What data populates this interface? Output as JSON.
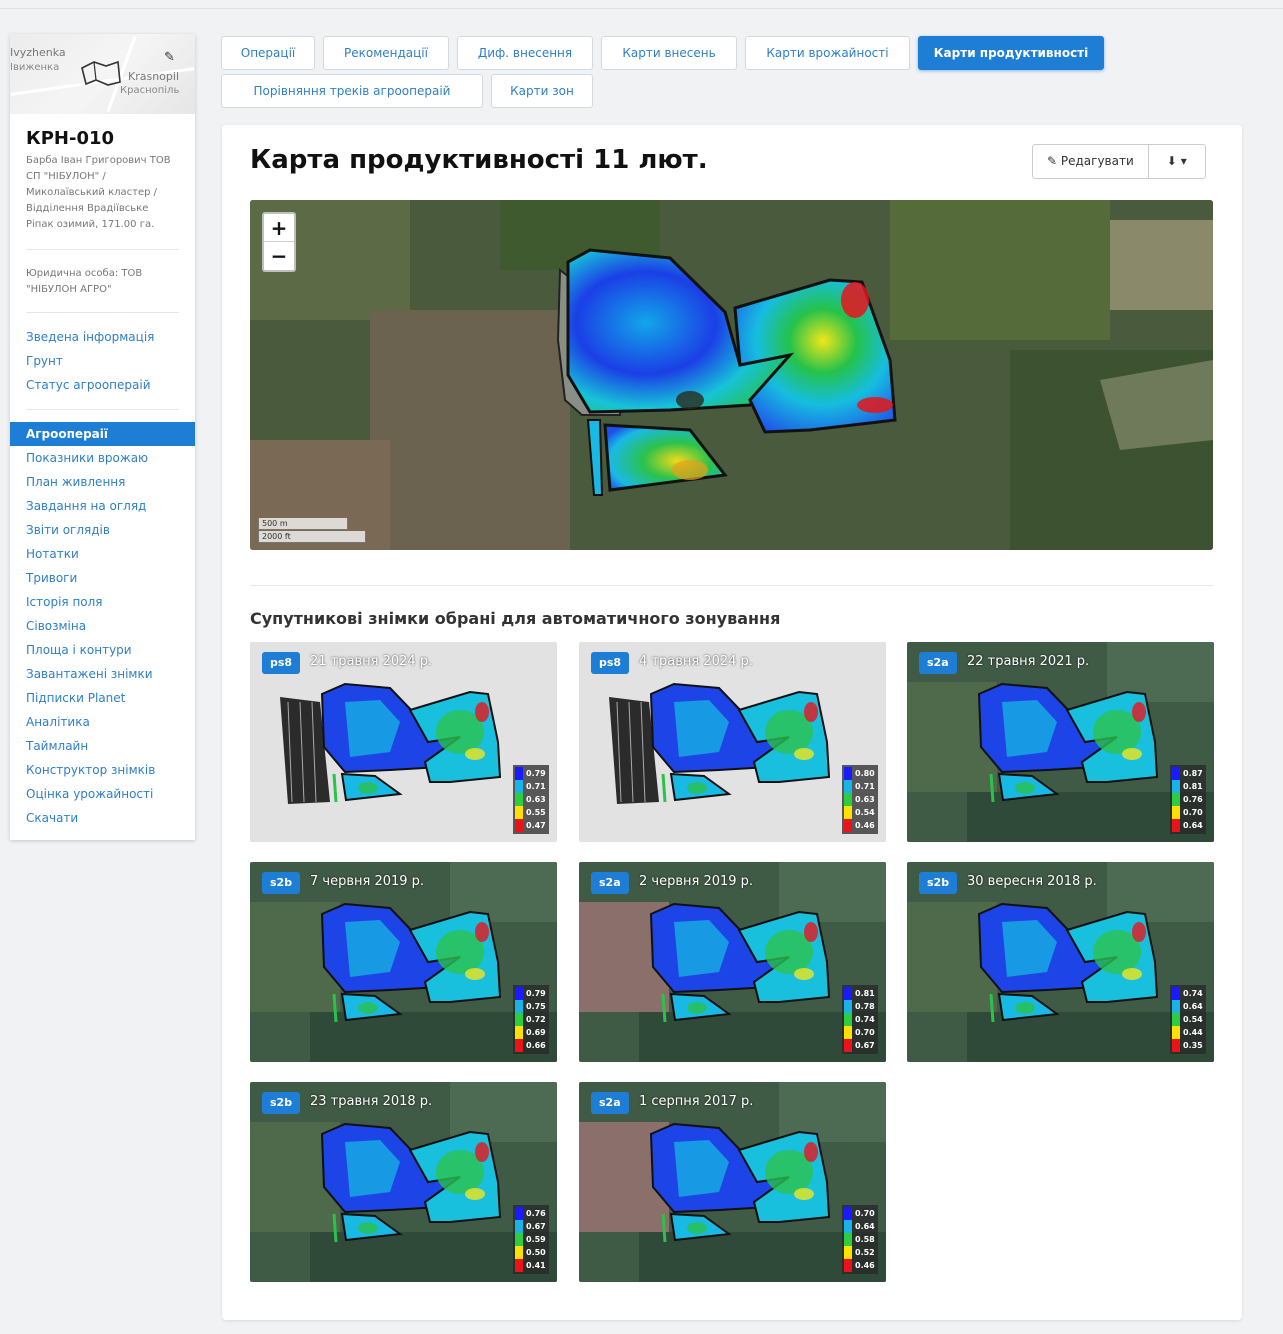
{
  "sidebar": {
    "minimap": {
      "label1": "Ivyzhenka",
      "label2": "Івиженка",
      "label3": "Krasnopil",
      "label4": "Краснопіль"
    },
    "field_code": "КРН-010",
    "field_description": "Барба Іван Григорович ТОВ СП \"НІБУЛОН\" / Миколаївський кластер / Відділення Врадіївське Ріпак озимий, 171.00 га.",
    "legal_entity": "Юридична особа: ТОВ \"НІБУЛОН АГРО\"",
    "nav_top": [
      "Зведена інформація",
      "Грунт",
      "Статус агроопераій"
    ],
    "nav_main": [
      "Агроопераії",
      "Показники врожаю",
      "План живлення",
      "Завдання на огляд",
      "Звіти оглядів",
      "Нотатки",
      "Тривоги",
      "Історія поля",
      "Сівозміна",
      "Площа і контури",
      "Завантажені знімки",
      "Підписки Planet",
      "Аналітика",
      "Таймлайн",
      "Конструктор знімків",
      "Оцінка урожайності",
      "Скачати"
    ]
  },
  "tabs": [
    "Операції",
    "Рекомендації",
    "Диф. внесення",
    "Карти внесень",
    "Карти врожайності",
    "Карти продуктивності",
    "Порівняння треків агроопераій",
    "Карти зон"
  ],
  "active_tab": "Карти продуктивності",
  "main": {
    "title": "Карта продуктивності 11 лют.",
    "edit_label": "Редагувати",
    "zoom_in": "+",
    "zoom_out": "−",
    "scale_m": "500 m",
    "scale_ft": "2000 ft",
    "section_title": "Супутникові знімки обрані для автоматичного зонування"
  },
  "thumbnails": [
    {
      "source": "ps8",
      "date": "21 травня 2024 р.",
      "background": "gray",
      "legend": [
        "0.79",
        "0.71",
        "0.63",
        "0.55",
        "0.47"
      ]
    },
    {
      "source": "ps8",
      "date": "4 травня 2024 р.",
      "background": "gray",
      "legend": [
        "0.80",
        "0.71",
        "0.63",
        "0.54",
        "0.46"
      ]
    },
    {
      "source": "s2a",
      "date": "22 травня 2021 р.",
      "background": "satellite",
      "legend": [
        "0.87",
        "0.81",
        "0.76",
        "0.70",
        "0.64"
      ]
    },
    {
      "source": "s2b",
      "date": "7 червня 2019 р.",
      "background": "satellite",
      "legend": [
        "0.79",
        "0.75",
        "0.72",
        "0.69",
        "0.66"
      ]
    },
    {
      "source": "s2a",
      "date": "2 червня 2019 р.",
      "background": "satellite",
      "legend": [
        "0.81",
        "0.78",
        "0.74",
        "0.70",
        "0.67"
      ]
    },
    {
      "source": "s2b",
      "date": "30 вересня 2018 р.",
      "background": "satellite",
      "legend": [
        "0.74",
        "0.64",
        "0.54",
        "0.44",
        "0.35"
      ]
    },
    {
      "source": "s2b",
      "date": "23 травня 2018 р.",
      "background": "satellite",
      "legend": [
        "0.76",
        "0.67",
        "0.59",
        "0.50",
        "0.41"
      ]
    },
    {
      "source": "s2a",
      "date": "1 серпня 2017 р.",
      "background": "satellite",
      "legend": [
        "0.70",
        "0.64",
        "0.58",
        "0.52",
        "0.46"
      ]
    }
  ],
  "colors": {
    "accent": "#1e7ed6",
    "link": "#2e7fc7",
    "legend_scale": [
      "#1a1aff",
      "#19b3e6",
      "#2ecc40",
      "#ffe100",
      "#e8141a"
    ]
  }
}
